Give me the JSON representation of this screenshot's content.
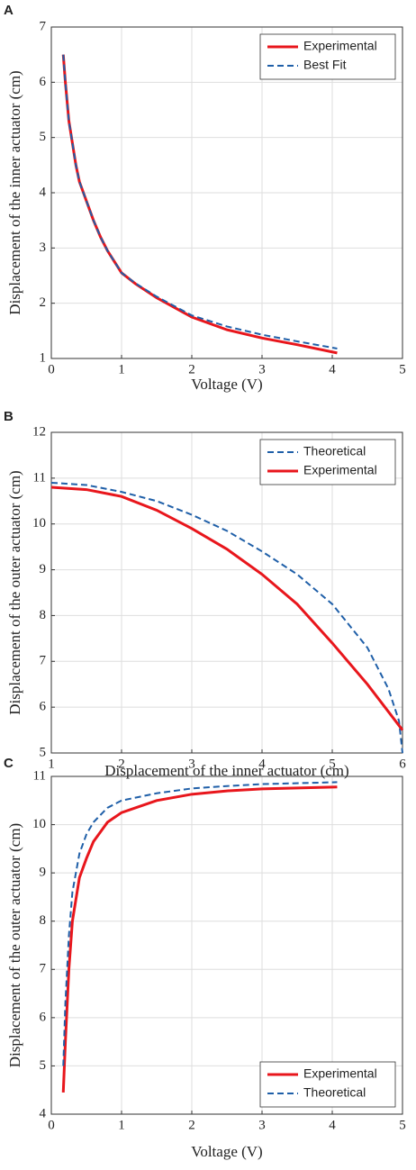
{
  "chart_data": [
    {
      "type": "line",
      "panel": "A",
      "xlabel": "Voltage (V)",
      "ylabel": "Displacement of the inner actuator (cm)",
      "xlim": [
        0,
        5
      ],
      "xticks": [
        0,
        1,
        2,
        3,
        4,
        5
      ],
      "ylim": [
        1,
        7
      ],
      "yticks": [
        1,
        2,
        3,
        4,
        5,
        6,
        7
      ],
      "grid": true,
      "legend": "upper-right",
      "series": [
        {
          "name": "Experimental",
          "color": "#e8161c",
          "linestyle": "solid",
          "x": [
            0.17,
            0.2,
            0.25,
            0.3,
            0.35,
            0.4,
            0.5,
            0.6,
            0.7,
            0.8,
            0.9,
            1.0,
            1.2,
            1.5,
            2.0,
            2.5,
            3.0,
            3.5,
            4.07
          ],
          "values": [
            6.5,
            6.0,
            5.3,
            4.9,
            4.5,
            4.2,
            3.85,
            3.5,
            3.2,
            2.95,
            2.75,
            2.55,
            2.35,
            2.1,
            1.75,
            1.52,
            1.37,
            1.25,
            1.1
          ]
        },
        {
          "name": "Best Fit",
          "color": "#1f5fa8",
          "linestyle": "dashed",
          "x": [
            0.17,
            0.2,
            0.25,
            0.3,
            0.35,
            0.4,
            0.5,
            0.6,
            0.7,
            0.8,
            0.9,
            1.0,
            1.2,
            1.5,
            2.0,
            2.5,
            3.0,
            3.5,
            4.07
          ],
          "values": [
            6.5,
            6.0,
            5.3,
            4.9,
            4.5,
            4.2,
            3.85,
            3.5,
            3.2,
            2.95,
            2.75,
            2.55,
            2.36,
            2.12,
            1.78,
            1.58,
            1.43,
            1.31,
            1.18
          ]
        }
      ]
    },
    {
      "type": "line",
      "panel": "B",
      "xlabel": "Displacement of the inner actuator (cm)",
      "ylabel": "Displacement of the outer actuator (cm)",
      "xlim": [
        1,
        6
      ],
      "xticks": [
        1,
        2,
        3,
        4,
        5,
        6
      ],
      "ylim": [
        5,
        12
      ],
      "yticks": [
        5,
        6,
        7,
        8,
        9,
        10,
        11,
        12
      ],
      "grid": true,
      "legend": "upper-right",
      "series": [
        {
          "name": "Theoretical",
          "color": "#1f5fa8",
          "linestyle": "dashed",
          "x": [
            1,
            1.5,
            2,
            2.5,
            3,
            3.5,
            4,
            4.5,
            5,
            5.5,
            5.8,
            5.95,
            6
          ],
          "values": [
            10.9,
            10.85,
            10.7,
            10.5,
            10.2,
            9.85,
            9.4,
            8.9,
            8.25,
            7.3,
            6.4,
            5.7,
            5.0
          ]
        },
        {
          "name": "Experimental",
          "color": "#e8161c",
          "linestyle": "solid",
          "x": [
            1,
            1.5,
            2,
            2.5,
            3,
            3.5,
            4,
            4.5,
            5,
            5.5,
            6
          ],
          "values": [
            10.8,
            10.75,
            10.6,
            10.3,
            9.9,
            9.45,
            8.9,
            8.25,
            7.4,
            6.5,
            5.5
          ]
        }
      ]
    },
    {
      "type": "line",
      "panel": "C",
      "xlabel": "Voltage (V)",
      "ylabel": "Displacement of the outer actuator (cm)",
      "xlim": [
        0,
        5
      ],
      "xticks": [
        0,
        1,
        2,
        3,
        4,
        5
      ],
      "ylim": [
        4,
        11
      ],
      "yticks": [
        4,
        5,
        6,
        7,
        8,
        9,
        10,
        11
      ],
      "grid": true,
      "legend": "lower-right",
      "series": [
        {
          "name": "Experimental",
          "color": "#e8161c",
          "linestyle": "solid",
          "x": [
            0.17,
            0.2,
            0.25,
            0.3,
            0.4,
            0.5,
            0.6,
            0.7,
            0.8,
            1.0,
            1.5,
            2.0,
            2.5,
            3.0,
            4.07
          ],
          "values": [
            4.45,
            5.5,
            7.0,
            8.0,
            8.9,
            9.3,
            9.65,
            9.85,
            10.05,
            10.25,
            10.5,
            10.63,
            10.7,
            10.74,
            10.78
          ]
        },
        {
          "name": "Theoretical",
          "color": "#1f5fa8",
          "linestyle": "dashed",
          "x": [
            0.17,
            0.2,
            0.25,
            0.3,
            0.4,
            0.5,
            0.6,
            0.7,
            0.8,
            1.0,
            1.5,
            2.0,
            2.5,
            3.0,
            4.07
          ],
          "values": [
            5.0,
            6.3,
            7.7,
            8.6,
            9.4,
            9.8,
            10.05,
            10.2,
            10.35,
            10.5,
            10.65,
            10.75,
            10.8,
            10.84,
            10.88
          ]
        }
      ]
    }
  ]
}
